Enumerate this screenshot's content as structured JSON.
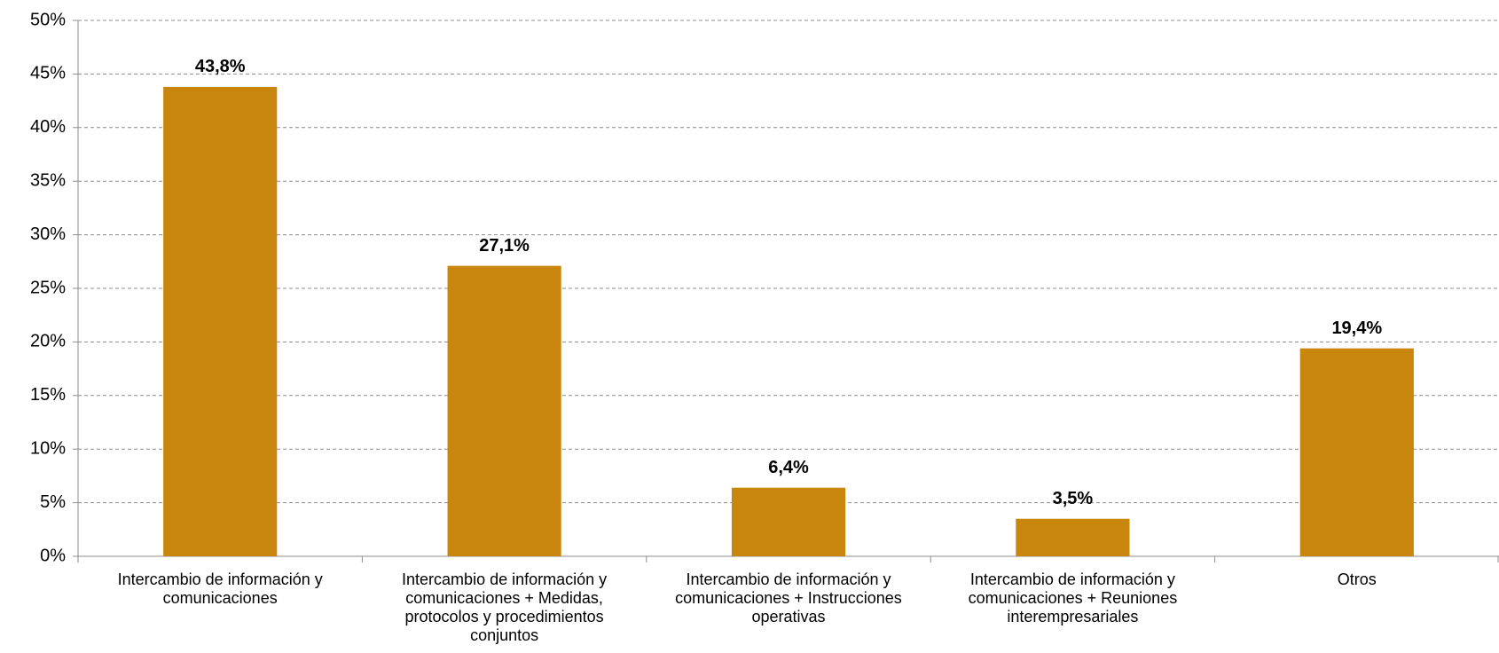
{
  "chart_data": {
    "type": "bar",
    "categories": [
      "Intercambio de información y comunicaciones",
      "Intercambio de información y comunicaciones + Medidas, protocolos y procedimientos conjuntos",
      "Intercambio de información y comunicaciones + Instrucciones operativas",
      "Intercambio de información y comunicaciones + Reuniones interempresariales",
      "Otros"
    ],
    "values": [
      43.8,
      27.1,
      6.4,
      3.5,
      19.4
    ],
    "value_labels": [
      "43,8%",
      "27,1%",
      "6,4%",
      "3,5%",
      "19,4%"
    ],
    "color": "#c8860d",
    "ylim": [
      0,
      50
    ],
    "yticks": [
      {
        "value": 0,
        "label": "0%"
      },
      {
        "value": 5,
        "label": "5%"
      },
      {
        "value": 10,
        "label": "10%"
      },
      {
        "value": 15,
        "label": "15%"
      },
      {
        "value": 20,
        "label": "20%"
      },
      {
        "value": 25,
        "label": "25%"
      },
      {
        "value": 30,
        "label": "30%"
      },
      {
        "value": 35,
        "label": "35%"
      },
      {
        "value": 40,
        "label": "40%"
      },
      {
        "value": 45,
        "label": "45%"
      },
      {
        "value": 50,
        "label": "50%"
      }
    ],
    "grid": true
  }
}
